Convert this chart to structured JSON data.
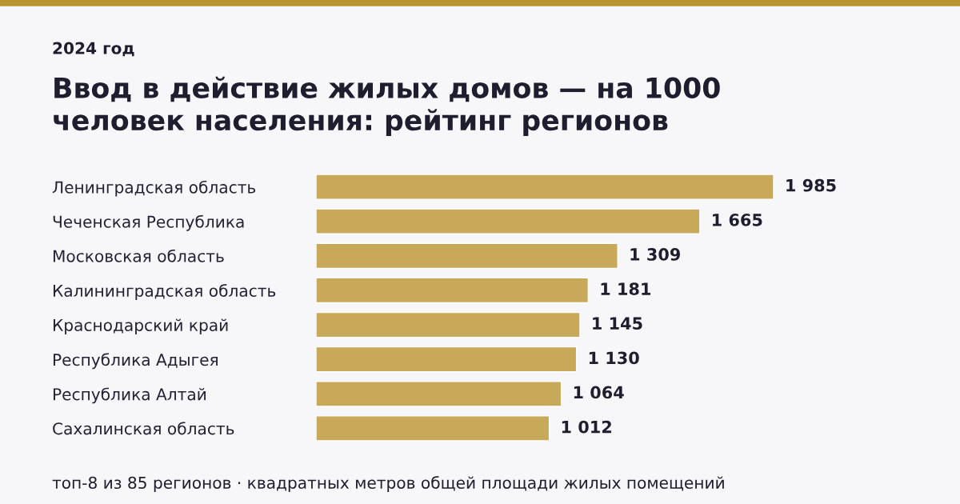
{
  "chart_data": {
    "type": "bar",
    "orientation": "horizontal",
    "title": "Ввод в действие жилых домов — на 1000\nчеловек населения: рейтинг регионов",
    "subtitle": "2024 год",
    "categories": [
      "Ленинградская область",
      "Чеченская Республика",
      "Московская область",
      "Калининградская область",
      "Краснодарский край",
      "Республика Адыгея",
      "Республика Алтай",
      "Сахалинская область"
    ],
    "values": [
      1985,
      1665,
      1309,
      1181,
      1145,
      1130,
      1064,
      1012
    ],
    "value_labels": [
      "1 985",
      "1 665",
      "1 309",
      "1 181",
      "1 145",
      "1 130",
      "1 064",
      "1 012"
    ],
    "color": "#c8a95a",
    "annotations": [
      "топ-8 из 85 регионов · квадратных метров общей площади жилых помещений"
    ],
    "grid": false,
    "legend": false,
    "tick_labels": "y"
  }
}
